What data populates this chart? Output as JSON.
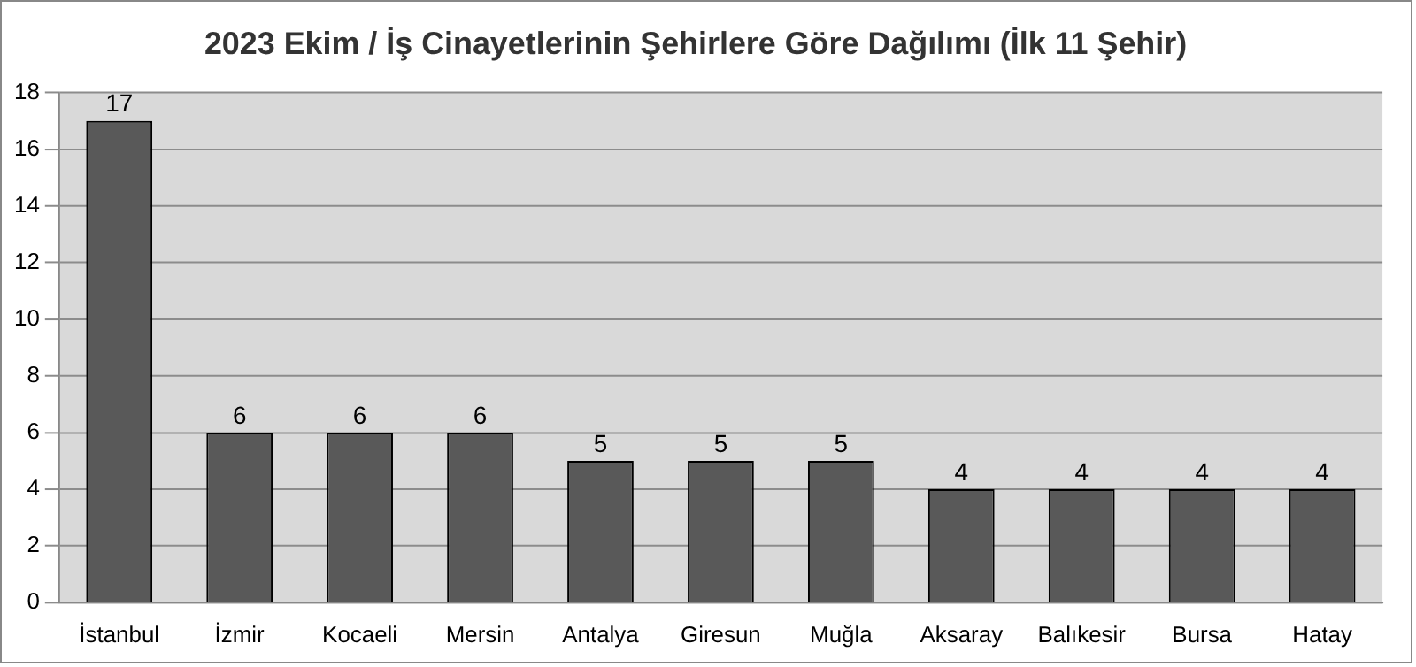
{
  "chart_data": {
    "type": "bar",
    "title": "2023 Ekim / İş Cinayetlerinin Şehirlere Göre Dağılımı (İlk 11 Şehir)",
    "categories": [
      "İstanbul",
      "İzmir",
      "Kocaeli",
      "Mersin",
      "Antalya",
      "Giresun",
      "Muğla",
      "Aksaray",
      "Balıkesir",
      "Bursa",
      "Hatay"
    ],
    "values": [
      17,
      6,
      6,
      6,
      5,
      5,
      5,
      4,
      4,
      4,
      4
    ],
    "color": "#595959",
    "ylim": [
      0,
      18
    ],
    "yticks": [
      0,
      2,
      4,
      6,
      8,
      10,
      12,
      14,
      16,
      18
    ],
    "grid": "y",
    "legend": false,
    "data_labels": true
  }
}
